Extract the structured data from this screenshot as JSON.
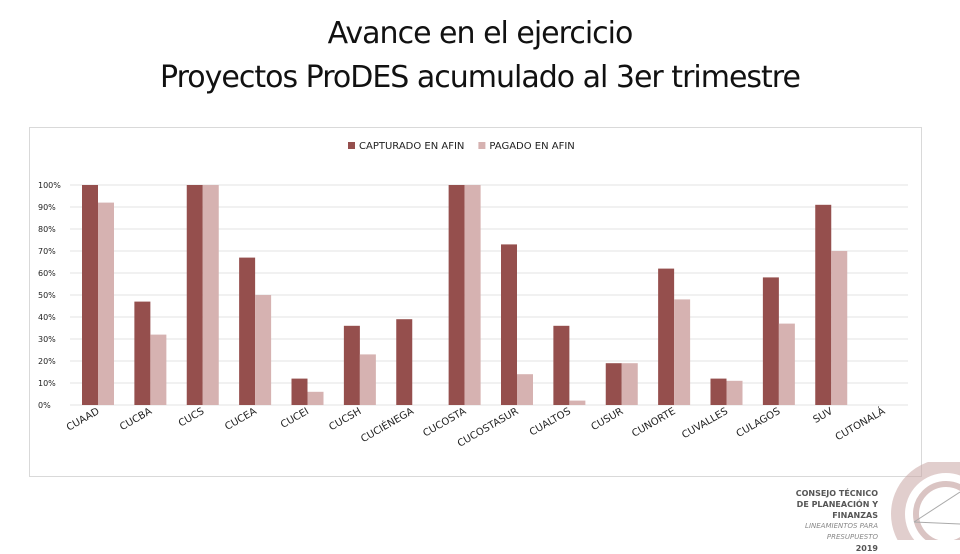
{
  "title_line1": "Avance en el ejercicio",
  "title_line2": "Proyectos ProDES acumulado al 3er trimestre",
  "chart_data": {
    "type": "bar",
    "categories": [
      "CUAAD",
      "CUCBA",
      "CUCS",
      "CUCEA",
      "CUCEI",
      "CUCSH",
      "CUCIÉNEGA",
      "CUCOSTA",
      "CUCOSTASUR",
      "CUALTOS",
      "CUSUR",
      "CUNORTE",
      "CUVALLES",
      "CULAGOS",
      "SUV",
      "CUTONALÁ"
    ],
    "series": [
      {
        "name": "CAPTURADO EN AFIN",
        "color": "#954f4d",
        "values": [
          100,
          47,
          100,
          67,
          12,
          36,
          39,
          100,
          73,
          36,
          19,
          62,
          12,
          58,
          91,
          0
        ]
      },
      {
        "name": "PAGADO EN AFIN",
        "color": "#d6b2b1",
        "values": [
          92,
          32,
          100,
          50,
          6,
          23,
          0,
          100,
          14,
          2,
          19,
          48,
          11,
          37,
          70,
          0
        ]
      }
    ],
    "ylim": [
      0,
      100
    ],
    "yticks": [
      "0%",
      "10%",
      "20%",
      "30%",
      "40%",
      "50%",
      "60%",
      "70%",
      "80%",
      "90%",
      "100%"
    ],
    "grid": true,
    "legend_position": "top-center"
  },
  "logo": {
    "line1": "CONSEJO TÉCNICO",
    "line2": "DE PLANEACIÓN Y FINANZAS",
    "line3": "LINEAMIENTOS PARA PRESUPUESTO",
    "line4": "2019"
  }
}
